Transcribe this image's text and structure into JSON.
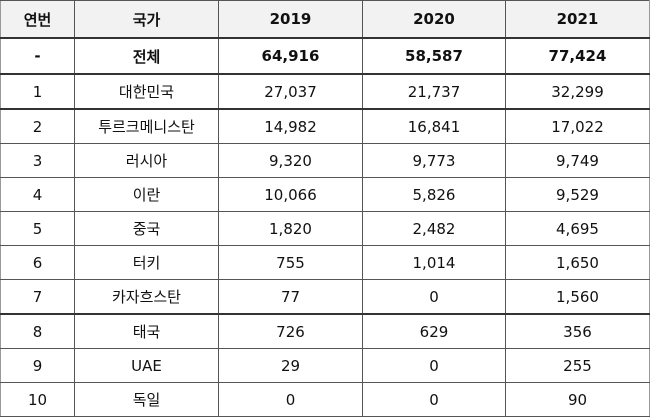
{
  "headers": [
    "연번",
    "국가",
    "2019",
    "2020",
    "2021"
  ],
  "total": {
    "no": "-",
    "country": "전체",
    "y2019": "64,916",
    "y2020": "58,587",
    "y2021": "77,424"
  },
  "rows": [
    {
      "no": "1",
      "country": "대한민국",
      "y2019": "27,037",
      "y2020": "21,737",
      "y2021": "32,299"
    },
    {
      "no": "2",
      "country": "투르크메니스탄",
      "y2019": "14,982",
      "y2020": "16,841",
      "y2021": "17,022"
    },
    {
      "no": "3",
      "country": "러시아",
      "y2019": "9,320",
      "y2020": "9,773",
      "y2021": "9,749"
    },
    {
      "no": "4",
      "country": "이란",
      "y2019": "10,066",
      "y2020": "5,826",
      "y2021": "9,529"
    },
    {
      "no": "5",
      "country": "중국",
      "y2019": "1,820",
      "y2020": "2,482",
      "y2021": "4,695"
    },
    {
      "no": "6",
      "country": "터키",
      "y2019": "755",
      "y2020": "1,014",
      "y2021": "1,650"
    },
    {
      "no": "7",
      "country": "카자흐스탄",
      "y2019": "77",
      "y2020": "0",
      "y2021": "1,560"
    },
    {
      "no": "8",
      "country": "태국",
      "y2019": "726",
      "y2020": "629",
      "y2021": "356"
    },
    {
      "no": "9",
      "country": "UAE",
      "y2019": "29",
      "y2020": "0",
      "y2021": "255"
    },
    {
      "no": "10",
      "country": "독일",
      "y2019": "0",
      "y2020": "0",
      "y2021": "90"
    }
  ]
}
